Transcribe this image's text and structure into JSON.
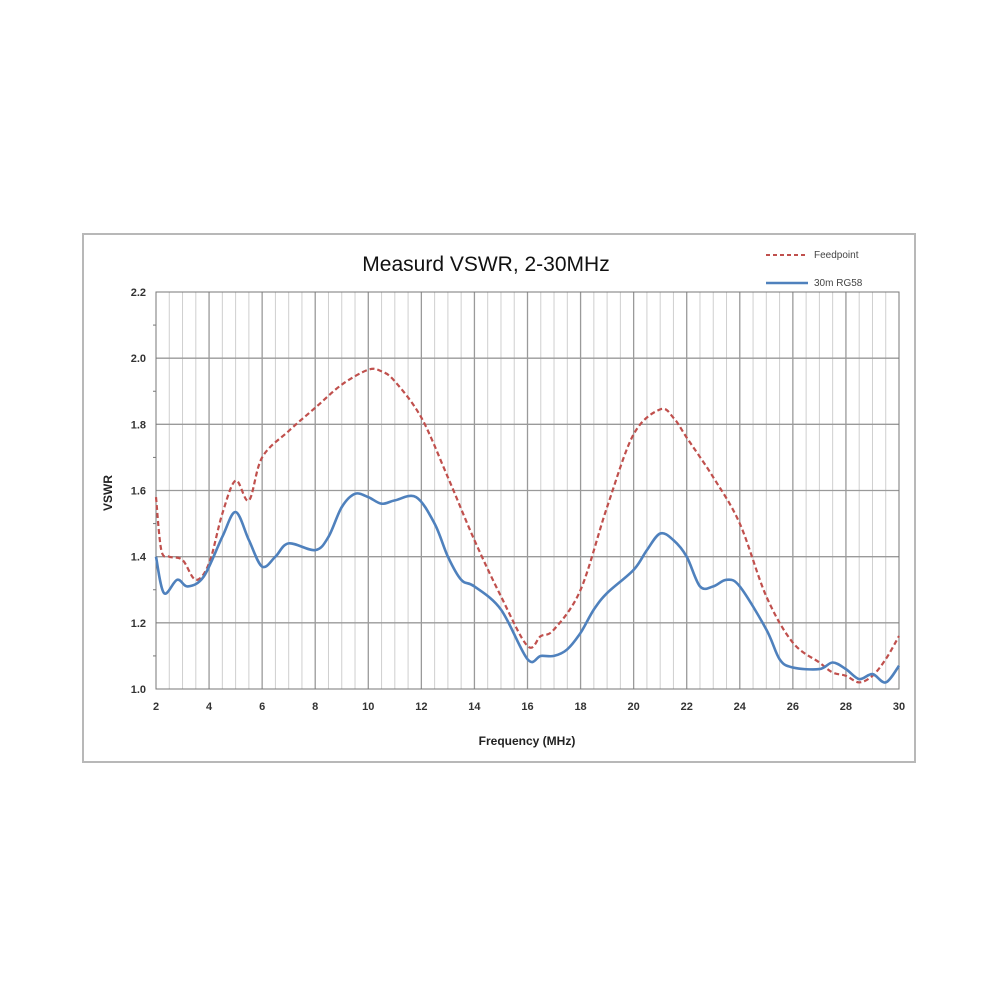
{
  "chart_data": {
    "type": "line",
    "title": "Measurd VSWR, 2-30MHz",
    "xlabel": "Frequency (MHz)",
    "ylabel": "VSWR",
    "xlim": [
      2,
      30
    ],
    "ylim": [
      1.0,
      2.2
    ],
    "x_ticks": [
      "2",
      "4",
      "6",
      "8",
      "10",
      "12",
      "14",
      "16",
      "18",
      "20",
      "22",
      "24",
      "26",
      "28",
      "30"
    ],
    "y_ticks": [
      "1.0",
      "1.2",
      "1.4",
      "1.6",
      "1.8",
      "2.0",
      "2.2"
    ],
    "grid": true,
    "legend_position": "top-right",
    "series": [
      {
        "name": "Feedpoint",
        "color": "#c0504d",
        "style": "dashed",
        "points": [
          [
            2.0,
            1.58
          ],
          [
            2.2,
            1.42
          ],
          [
            2.5,
            1.4
          ],
          [
            3.0,
            1.39
          ],
          [
            3.5,
            1.33
          ],
          [
            4.0,
            1.38
          ],
          [
            4.5,
            1.53
          ],
          [
            5.0,
            1.63
          ],
          [
            5.5,
            1.57
          ],
          [
            6.0,
            1.7
          ],
          [
            7.0,
            1.78
          ],
          [
            8.0,
            1.85
          ],
          [
            9.0,
            1.92
          ],
          [
            10.0,
            1.965
          ],
          [
            10.5,
            1.96
          ],
          [
            11.0,
            1.93
          ],
          [
            12.0,
            1.82
          ],
          [
            13.0,
            1.64
          ],
          [
            14.0,
            1.45
          ],
          [
            15.0,
            1.28
          ],
          [
            16.0,
            1.13
          ],
          [
            16.5,
            1.16
          ],
          [
            17.0,
            1.18
          ],
          [
            18.0,
            1.3
          ],
          [
            19.0,
            1.55
          ],
          [
            20.0,
            1.77
          ],
          [
            21.0,
            1.845
          ],
          [
            21.5,
            1.82
          ],
          [
            22.0,
            1.76
          ],
          [
            23.0,
            1.64
          ],
          [
            24.0,
            1.5
          ],
          [
            25.0,
            1.28
          ],
          [
            26.0,
            1.14
          ],
          [
            27.0,
            1.08
          ],
          [
            27.5,
            1.05
          ],
          [
            28.0,
            1.04
          ],
          [
            28.5,
            1.02
          ],
          [
            29.0,
            1.04
          ],
          [
            29.5,
            1.09
          ],
          [
            30.0,
            1.16
          ]
        ]
      },
      {
        "name": "30m RG58",
        "color": "#4f81bd",
        "style": "solid",
        "points": [
          [
            2.0,
            1.4
          ],
          [
            2.3,
            1.29
          ],
          [
            2.8,
            1.33
          ],
          [
            3.2,
            1.31
          ],
          [
            3.8,
            1.34
          ],
          [
            4.5,
            1.46
          ],
          [
            5.0,
            1.535
          ],
          [
            5.5,
            1.45
          ],
          [
            6.0,
            1.37
          ],
          [
            6.5,
            1.4
          ],
          [
            7.0,
            1.44
          ],
          [
            8.0,
            1.42
          ],
          [
            8.5,
            1.46
          ],
          [
            9.0,
            1.55
          ],
          [
            9.5,
            1.59
          ],
          [
            10.0,
            1.58
          ],
          [
            10.5,
            1.56
          ],
          [
            11.0,
            1.57
          ],
          [
            11.8,
            1.58
          ],
          [
            12.5,
            1.5
          ],
          [
            13.0,
            1.4
          ],
          [
            13.5,
            1.33
          ],
          [
            14.0,
            1.31
          ],
          [
            15.0,
            1.24
          ],
          [
            16.0,
            1.09
          ],
          [
            16.5,
            1.1
          ],
          [
            17.0,
            1.1
          ],
          [
            17.5,
            1.12
          ],
          [
            18.0,
            1.17
          ],
          [
            18.5,
            1.24
          ],
          [
            19.0,
            1.29
          ],
          [
            20.0,
            1.36
          ],
          [
            20.5,
            1.42
          ],
          [
            21.0,
            1.47
          ],
          [
            21.5,
            1.45
          ],
          [
            22.0,
            1.4
          ],
          [
            22.5,
            1.31
          ],
          [
            23.0,
            1.31
          ],
          [
            23.5,
            1.33
          ],
          [
            24.0,
            1.31
          ],
          [
            25.0,
            1.18
          ],
          [
            25.5,
            1.09
          ],
          [
            26.0,
            1.065
          ],
          [
            27.0,
            1.06
          ],
          [
            27.5,
            1.08
          ],
          [
            28.0,
            1.06
          ],
          [
            28.5,
            1.03
          ],
          [
            29.0,
            1.045
          ],
          [
            29.5,
            1.02
          ],
          [
            30.0,
            1.07
          ]
        ]
      }
    ]
  }
}
